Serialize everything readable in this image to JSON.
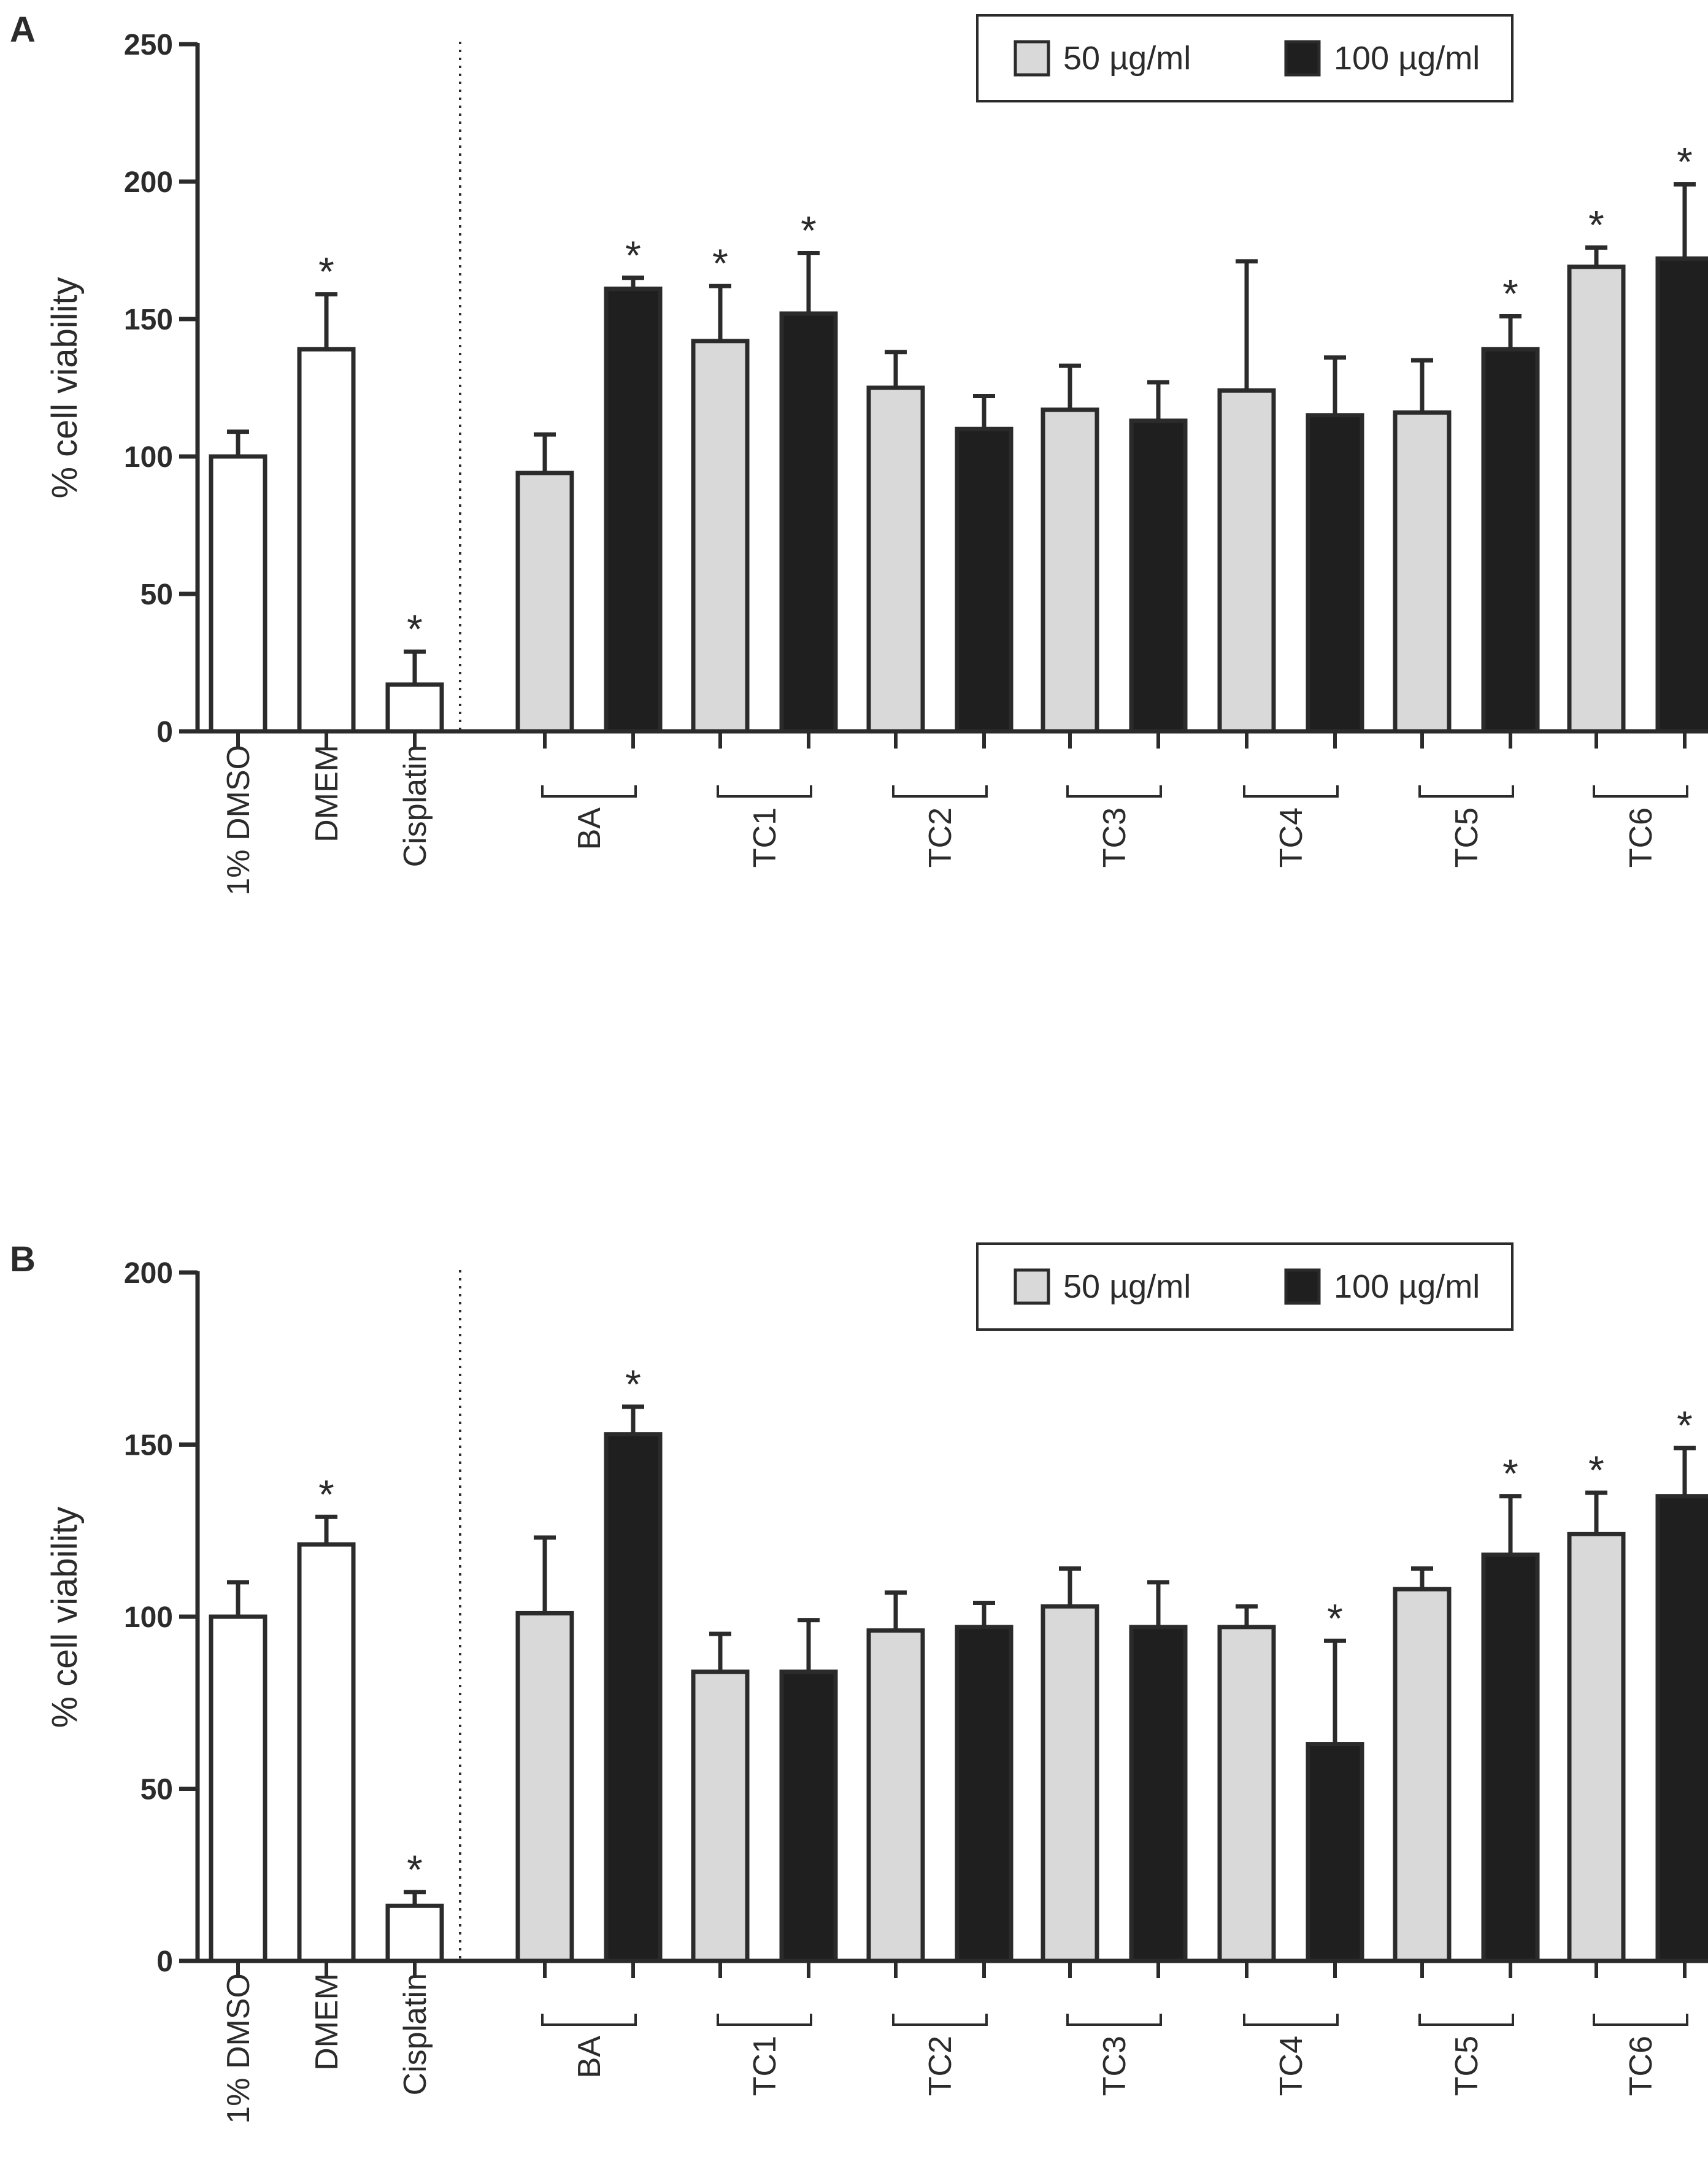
{
  "figure": {
    "colors": {
      "control": "#ffffff",
      "low_dose": "#d9d9d9",
      "high_dose": "#1f1f1f",
      "stroke": "#2b2b2b"
    }
  },
  "chart_data": [
    {
      "panel_label": "A",
      "type": "bar",
      "ylabel": "% cell viability",
      "ylim": [
        0,
        250
      ],
      "yticks": [
        0,
        50,
        100,
        150,
        200,
        250
      ],
      "grid": false,
      "legend": {
        "position": "top-right",
        "entries": [
          "50 µg/ml",
          "100 µg/ml"
        ]
      },
      "significance_marker": "*",
      "controls": [
        {
          "label": "1% DMSO",
          "value": 100,
          "error": 9,
          "significant": false
        },
        {
          "label": "DMEM",
          "value": 139,
          "error": 20,
          "significant": true
        },
        {
          "label": "Cisplatin",
          "value": 17,
          "error": 12,
          "significant": true
        }
      ],
      "categories": [
        "BA",
        "TC1",
        "TC2",
        "TC3",
        "TC4",
        "TC5",
        "TC6"
      ],
      "series": [
        {
          "name": "50 µg/ml",
          "values": [
            94,
            142,
            125,
            117,
            124,
            116,
            169
          ],
          "errors": [
            14,
            20,
            13,
            16,
            47,
            19,
            7
          ],
          "significant": [
            false,
            true,
            false,
            false,
            false,
            false,
            true
          ]
        },
        {
          "name": "100 µg/ml",
          "values": [
            161,
            152,
            110,
            113,
            115,
            139,
            172
          ],
          "errors": [
            4,
            22,
            12,
            14,
            21,
            12,
            27
          ],
          "significant": [
            true,
            true,
            false,
            false,
            false,
            true,
            true
          ]
        }
      ]
    },
    {
      "panel_label": "B",
      "type": "bar",
      "ylabel": "% cell viability",
      "ylim": [
        0,
        200
      ],
      "yticks": [
        0,
        50,
        100,
        150,
        200
      ],
      "grid": false,
      "legend": {
        "position": "top-right",
        "entries": [
          "50 µg/ml",
          "100 µg/ml"
        ]
      },
      "significance_marker": "*",
      "controls": [
        {
          "label": "1% DMSO",
          "value": 100,
          "error": 10,
          "significant": false
        },
        {
          "label": "DMEM",
          "value": 121,
          "error": 8,
          "significant": true
        },
        {
          "label": "Cisplatin",
          "value": 16,
          "error": 4,
          "significant": true
        }
      ],
      "categories": [
        "BA",
        "TC1",
        "TC2",
        "TC3",
        "TC4",
        "TC5",
        "TC6"
      ],
      "series": [
        {
          "name": "50 µg/ml",
          "values": [
            101,
            84,
            96,
            103,
            97,
            108,
            124
          ],
          "errors": [
            22,
            11,
            11,
            11,
            6,
            6,
            12
          ],
          "significant": [
            false,
            false,
            false,
            false,
            false,
            false,
            true
          ]
        },
        {
          "name": "100 µg/ml",
          "values": [
            153,
            84,
            97,
            97,
            63,
            118,
            135
          ],
          "errors": [
            8,
            15,
            7,
            13,
            30,
            17,
            14
          ],
          "significant": [
            true,
            false,
            false,
            false,
            true,
            true,
            true
          ]
        }
      ]
    }
  ]
}
